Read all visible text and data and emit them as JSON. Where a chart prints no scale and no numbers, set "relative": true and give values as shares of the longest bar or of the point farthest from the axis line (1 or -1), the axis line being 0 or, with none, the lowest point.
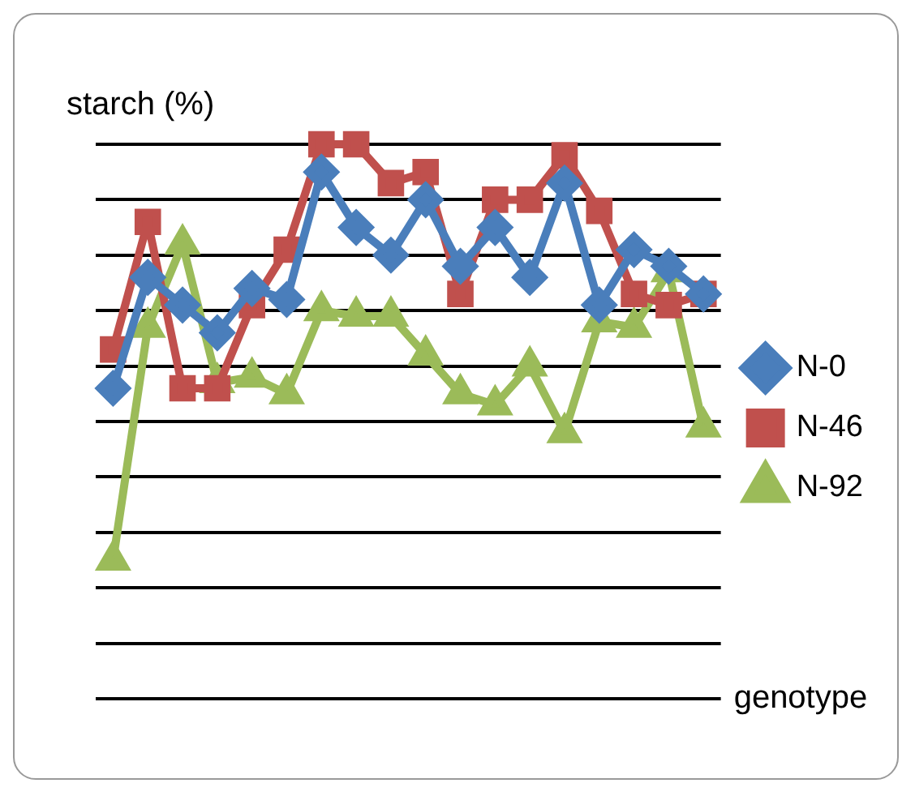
{
  "chart_data": {
    "type": "line",
    "ylabel": "starch (%)",
    "xlabel": "genotype",
    "relative": true,
    "grid": "y",
    "legend": "right",
    "categories": [
      null,
      null,
      null,
      null,
      null,
      null,
      null,
      null,
      null,
      null,
      null,
      null,
      null,
      null,
      null,
      null,
      null,
      null
    ],
    "series": [
      {
        "name": "N-0",
        "color": "#4a7ebb",
        "marker": "diamond",
        "values": [
          0.56,
          0.76,
          0.71,
          0.66,
          0.74,
          0.72,
          0.95,
          0.85,
          0.8,
          0.9,
          0.78,
          0.85,
          0.76,
          0.93,
          0.71,
          0.81,
          0.78,
          0.73
        ]
      },
      {
        "name": "N-46",
        "color": "#c0504d",
        "marker": "square",
        "values": [
          0.63,
          0.86,
          0.56,
          0.56,
          0.71,
          0.81,
          1,
          1,
          0.93,
          0.95,
          0.73,
          0.9,
          0.9,
          0.98,
          0.88,
          0.73,
          0.71,
          0.73
        ]
      },
      {
        "name": "N-92",
        "color": "#9bbb59",
        "marker": "triangle",
        "values": [
          0.25,
          0.67,
          0.82,
          0.57,
          0.58,
          0.55,
          0.7,
          0.69,
          0.69,
          0.62,
          0.55,
          0.53,
          0.6,
          0.48,
          0.68,
          0.67,
          0.77,
          0.49
        ]
      }
    ]
  }
}
